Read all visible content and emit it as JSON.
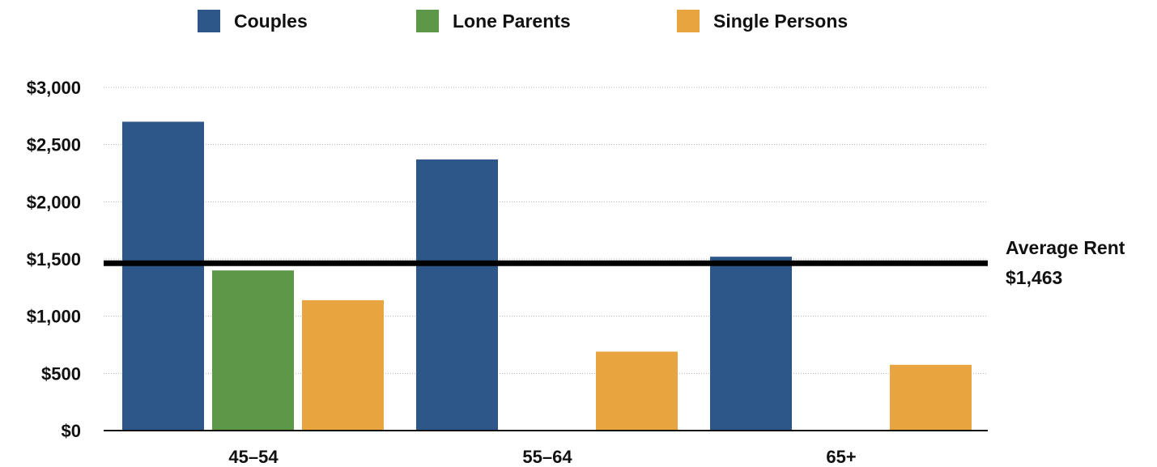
{
  "chart_data": {
    "type": "bar",
    "categories": [
      "45–54",
      "55–64",
      "65+"
    ],
    "series": [
      {
        "name": "Couples",
        "color": "#2e5789",
        "values": [
          2700,
          2370,
          1520
        ]
      },
      {
        "name": "Lone Parents",
        "color": "#5d9748",
        "values": [
          1400,
          null,
          null
        ]
      },
      {
        "name": "Single Persons",
        "color": "#e8a43e",
        "values": [
          1140,
          690,
          575
        ]
      }
    ],
    "ylim": [
      0,
      3000
    ],
    "yticks": [
      0,
      500,
      1000,
      1500,
      2000,
      2500,
      3000
    ],
    "ytick_labels": [
      "$0",
      "$500",
      "$1,000",
      "$1,500",
      "$2,000",
      "$2,500",
      "$3,000"
    ],
    "grid": true,
    "legend_position": "top",
    "reference_line": {
      "value": 1463,
      "label_line1": "Average Rent",
      "label_line2": "$1,463"
    },
    "title": "",
    "xlabel": "",
    "ylabel": ""
  }
}
